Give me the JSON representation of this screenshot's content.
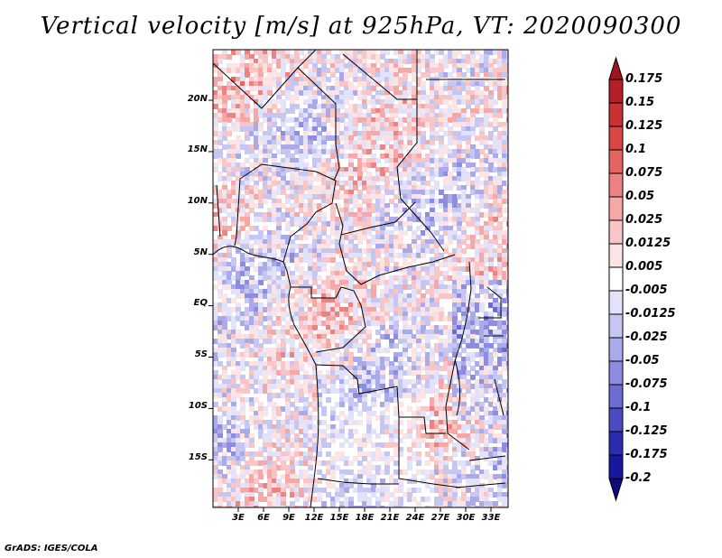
{
  "title": "Vertical velocity [m/s] at 925hPa, VT: 2020090300",
  "credit": "GrADS: IGES/COLA",
  "map": {
    "lon_range": [
      0,
      35
    ],
    "lat_range": [
      -20,
      25
    ],
    "lat_ticks": [
      "20N",
      "15N",
      "10N",
      "5N",
      "EQ",
      "5S",
      "10S",
      "15S"
    ],
    "lon_ticks": [
      "3E",
      "6E",
      "9E",
      "12E",
      "15E",
      "18E",
      "21E",
      "24E",
      "27E",
      "30E",
      "33E"
    ]
  },
  "colorbar": {
    "labels": [
      "0.175",
      "0.15",
      "0.125",
      "0.1",
      "0.075",
      "0.05",
      "0.025",
      "0.0125",
      "0.005",
      "-0.005",
      "-0.0125",
      "-0.025",
      "-0.05",
      "-0.075",
      "-0.1",
      "-0.125",
      "-0.175",
      "-0.2"
    ],
    "colors": [
      "#a0141e",
      "#b51e26",
      "#c83232",
      "#d84646",
      "#e46464",
      "#ec8282",
      "#f4a8a8",
      "#f8c6c6",
      "#fde4e4",
      "#ffffff",
      "#e2e2fa",
      "#c6c6f2",
      "#aaaaea",
      "#8c8ce0",
      "#6c6cd4",
      "#4a4ac4",
      "#2c2cb0",
      "#18189c",
      "#0c0c78"
    ]
  }
}
